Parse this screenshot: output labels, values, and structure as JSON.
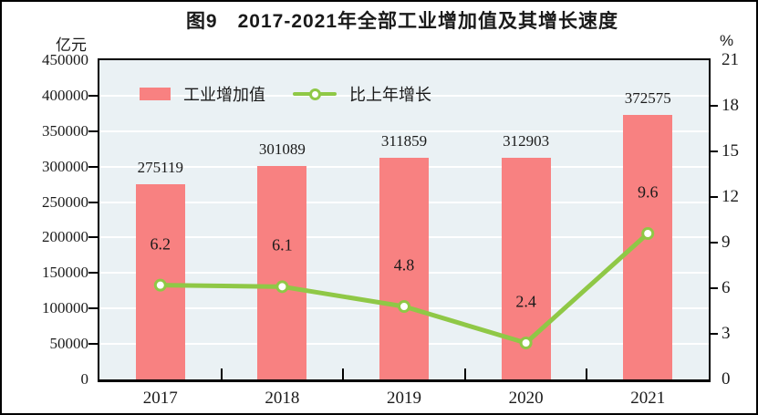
{
  "chart_data": {
    "type": "combo-bar-line",
    "title": "图9　2017-2021年全部工业增加值及其增长速度",
    "categories": [
      "2017",
      "2018",
      "2019",
      "2020",
      "2021"
    ],
    "series": [
      {
        "name": "工业增加值",
        "type": "bar",
        "axis": "left",
        "values": [
          275119,
          301089,
          311859,
          312903,
          372575
        ]
      },
      {
        "name": "比上年增长",
        "type": "line",
        "axis": "right",
        "values": [
          6.2,
          6.1,
          4.8,
          2.4,
          9.6
        ]
      }
    ],
    "left_axis": {
      "unit": "亿元",
      "min": 0,
      "max": 450000,
      "step": 50000,
      "tick_labels": [
        "0",
        "50000",
        "100000",
        "150000",
        "200000",
        "250000",
        "300000",
        "350000",
        "400000",
        "450000"
      ]
    },
    "right_axis": {
      "unit": "%",
      "min": 0,
      "max": 21,
      "step": 3,
      "tick_labels": [
        "0",
        "3",
        "6",
        "9",
        "12",
        "15",
        "18",
        "21"
      ]
    },
    "legend_position": "top-left-inside",
    "grid": "horizontal-gridlines",
    "colors": {
      "bar": "#F88181",
      "line": "#8FC846",
      "marker_fill": "#FFFFFF",
      "plot_background": "#EAF1F4",
      "gridline": "#FFFFFF",
      "axis": "#000000",
      "text": "#1A1A1A"
    }
  }
}
